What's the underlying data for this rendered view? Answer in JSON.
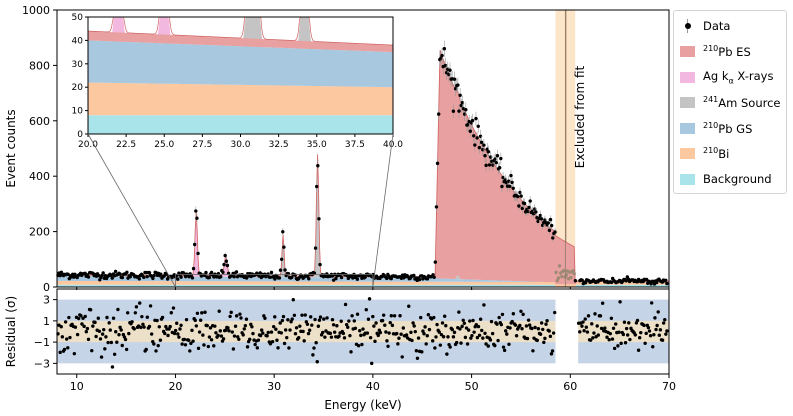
{
  "chart_data": [
    {
      "type": "area",
      "title": "",
      "xlabel": "Energy (keV)",
      "ylabel": "Event counts",
      "xlim": [
        8,
        70
      ],
      "ylim": [
        0,
        1000
      ],
      "xticks": [
        "10",
        "20",
        "30",
        "40",
        "50",
        "60",
        "70"
      ],
      "yticks": [
        "0",
        "200",
        "400",
        "600",
        "800",
        "1000"
      ],
      "annotation": "Excluded from fit",
      "excluded_region_kev": [
        58.5,
        60.5
      ],
      "legend_position": "outside-right",
      "series": [
        {
          "name": "Data",
          "style": "points",
          "x": [
            8,
            10,
            12,
            14,
            16,
            18,
            20,
            21,
            22,
            22.2,
            23,
            24,
            25,
            25.3,
            26,
            27,
            28,
            29,
            30,
            30.8,
            31,
            32,
            33,
            34,
            34.2,
            34.5,
            34.8,
            35,
            36,
            38,
            40,
            42,
            44,
            45,
            46,
            46.3,
            46.6,
            47,
            48,
            49,
            50,
            51,
            52,
            53,
            54,
            55,
            56,
            57,
            58,
            58.5,
            61,
            62,
            64,
            66,
            68,
            70
          ],
          "y": [
            50,
            48,
            45,
            44,
            43,
            41,
            40,
            40,
            70,
            250,
            45,
            42,
            100,
            80,
            42,
            40,
            40,
            40,
            41,
            150,
            185,
            40,
            40,
            150,
            300,
            470,
            290,
            120,
            40,
            39,
            38,
            37,
            36,
            36,
            40,
            380,
            820,
            860,
            750,
            680,
            610,
            560,
            500,
            430,
            370,
            310,
            250,
            180,
            80,
            20,
            35,
            25,
            20,
            18,
            17,
            16
          ]
        },
        {
          "name": "210Pb ES",
          "color": "#e8a0a0"
        },
        {
          "name": "Ag kα X-rays",
          "color": "#f2b8e0"
        },
        {
          "name": "241Am Source",
          "color": "#c4c4c4"
        },
        {
          "name": "210Pb GS",
          "color": "#a8c8e0"
        },
        {
          "name": "210Bi",
          "color": "#fbc8a0"
        },
        {
          "name": "Background",
          "color": "#a8e4ea"
        }
      ]
    },
    {
      "type": "area",
      "title": "inset",
      "xlim": [
        20,
        40
      ],
      "ylim": [
        0,
        50
      ],
      "xticks": [
        "20.0",
        "22.5",
        "25.0",
        "27.5",
        "30.0",
        "32.5",
        "35.0",
        "37.5",
        "40.0"
      ],
      "yticks": [
        "0",
        "10",
        "20",
        "30",
        "40",
        "50"
      ],
      "stack": {
        "x": [
          20,
          40
        ],
        "Background": [
          8,
          8
        ],
        "210Bi": [
          14,
          12
        ],
        "210Pb GS": [
          18,
          15
        ],
        "210Pb ES": [
          4,
          3
        ]
      },
      "peaks": [
        {
          "name": "Ag kα X-rays",
          "x": 22.0,
          "height": 50
        },
        {
          "name": "Ag kα X-rays",
          "x": 25.0,
          "height": 50
        },
        {
          "name": "241Am Source",
          "x": 30.6,
          "height": 50
        },
        {
          "name": "241Am Source",
          "x": 31.0,
          "height": 50
        },
        {
          "name": "241Am Source",
          "x": 34.2,
          "height": 50
        }
      ]
    },
    {
      "type": "scatter",
      "xlabel": "Energy (keV)",
      "ylabel": "Residual (σ)",
      "xlim": [
        8,
        70
      ],
      "ylim": [
        -4,
        4
      ],
      "xticks": [
        "10",
        "20",
        "30",
        "40",
        "50",
        "60",
        "70"
      ],
      "yticks": [
        "3",
        "1",
        "−1",
        "−3"
      ],
      "bands": {
        "one_sigma": [
          -1,
          1
        ],
        "three_sigma": [
          -3,
          3
        ]
      }
    }
  ],
  "legend": {
    "items": [
      {
        "label": "Data",
        "kind": "marker"
      },
      {
        "label": "Pb ES",
        "sup": "210",
        "color": "#e8a0a0"
      },
      {
        "label": "Ag k",
        "suffix_sub": "α",
        "after": " X-rays",
        "color": "#f2b8e0"
      },
      {
        "label": "Am Source",
        "sup": "241",
        "color": "#c4c4c4"
      },
      {
        "label": "Pb GS",
        "sup": "210",
        "color": "#a8c8e0"
      },
      {
        "label": "Bi",
        "sup": "210",
        "color": "#fbc8a0"
      },
      {
        "label": "Background",
        "color": "#a8e4ea"
      }
    ]
  }
}
